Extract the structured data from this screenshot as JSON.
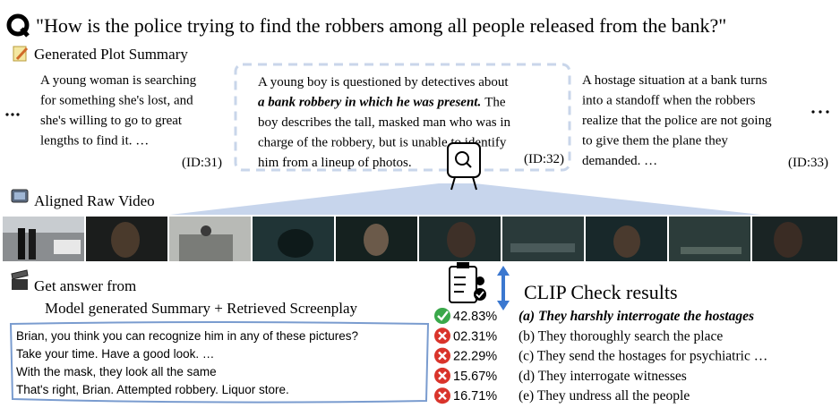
{
  "question": "\"How is the police trying to find the robbers among all people released from the bank?\"",
  "plot_heading": "Generated Plot Summary",
  "summaries": [
    {
      "lines": [
        "A young woman is searching",
        "for something she's lost, and",
        "she's willing to go to great",
        "lengths to find it. …"
      ],
      "id": "(ID:31)"
    },
    {
      "lines": [
        "A young boy is questioned by detectives about",
        "The",
        "boy describes the tall, masked man who was in",
        "charge of the robbery, but is unable to identify",
        "him from a lineup of photos."
      ],
      "emphasis": "a bank robbery in which he was present.",
      "id": "(ID:32)"
    },
    {
      "lines": [
        "A hostage situation at a bank turns",
        "into a standoff when the robbers",
        "realize that the police are not going",
        "to give them the plane they",
        "demanded. …"
      ],
      "id": "(ID:33)"
    }
  ],
  "video_heading": "Aligned Raw Video",
  "answer_heading": "Get answer from",
  "answer_source": "Model generated Summary + Retrieved Screenplay",
  "screenplay": [
    "Brian, you think you can recognize him in any of these pictures?",
    "Take your time. Have a good look. …",
    "With the mask, they look all the same",
    "That's right, Brian. Attempted robbery. Liquor store."
  ],
  "clip_heading": "CLIP Check results",
  "options": [
    {
      "score": "42.83%",
      "text": "(a) They harshly interrogate the hostages",
      "correct": true
    },
    {
      "score": "02.31%",
      "text": "(b) They thoroughly search the place",
      "correct": false
    },
    {
      "score": "22.29%",
      "text": "(c) They send the hostages for psychiatric …",
      "correct": false
    },
    {
      "score": "15.67%",
      "text": "(d) They interrogate witnesses",
      "correct": false
    },
    {
      "score": "16.71%",
      "text": "(e) They undress all the people",
      "correct": false
    }
  ]
}
